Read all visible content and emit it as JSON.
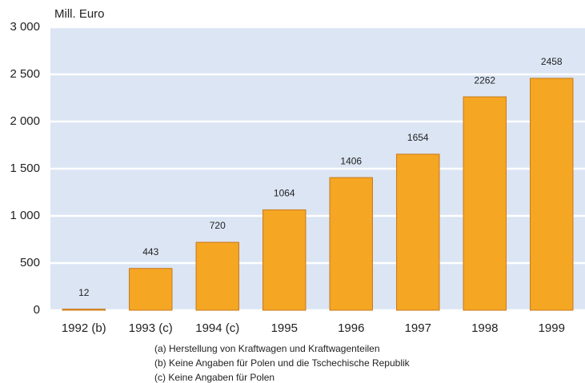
{
  "chart_data": {
    "type": "bar",
    "y_axis_label": "Mill. Euro",
    "categories": [
      "1992 (b)",
      "1993 (c)",
      "1994 (c)",
      "1995",
      "1996",
      "1997",
      "1998",
      "1999"
    ],
    "values": [
      12,
      443,
      720,
      1064,
      1406,
      1654,
      2262,
      2458
    ],
    "color": "#f5a623",
    "ylim": [
      0,
      3000
    ],
    "yticks": [
      0,
      500,
      {
        "value": 1000,
        "label": "1 000"
      },
      {
        "value": 1500,
        "label": "1 500"
      },
      {
        "value": 2000,
        "label": "2 000"
      },
      {
        "value": 2500,
        "label": "2 500"
      },
      {
        "value": 3000,
        "label": "3 000"
      }
    ],
    "grid": true,
    "annotations": [
      "(a) Herstellung von Kraftwagen und Kraftwagenteilen",
      "(b) Keine Angaben für Polen und die Tschechische Republik",
      "(c) Keine Angaben für Polen"
    ]
  }
}
